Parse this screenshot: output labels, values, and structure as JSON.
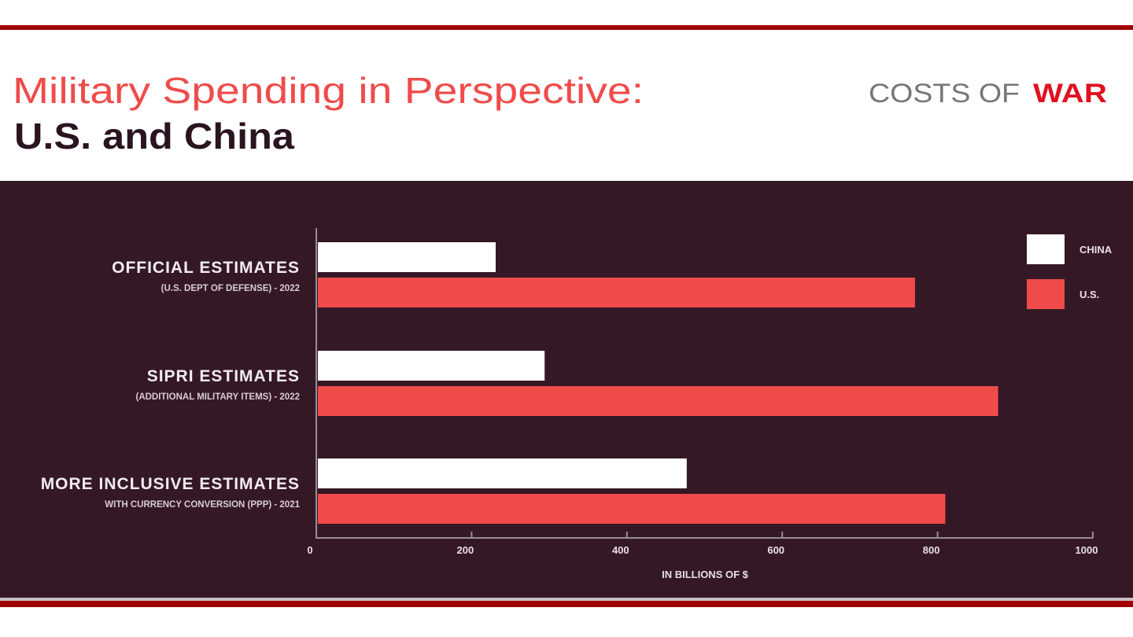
{
  "header": {
    "title": "Military Spending in Perspective:",
    "subtitle": "U.S. and China",
    "logo_part1": "COSTS OF",
    "logo_part2": "WAR"
  },
  "colors": {
    "accent_red": "#f04b4b",
    "brand_dark_red": "#a00000",
    "panel_bg": "#351826",
    "china": "#ffffff",
    "us": "#f04b4b"
  },
  "chart_data": {
    "type": "bar",
    "orientation": "horizontal",
    "title": "Military Spending in Perspective:",
    "subtitle": "U.S. and China",
    "xlabel": "IN BILLIONS OF $",
    "xlim": [
      0,
      1000
    ],
    "xticks": [
      "0",
      "200",
      "400",
      "600",
      "800",
      "1000"
    ],
    "grid": false,
    "legend_position": "right",
    "categories": [
      {
        "label": "OFFICIAL ESTIMATES",
        "sublabel": "(U.S. DEPT OF DEFENSE) - 2022"
      },
      {
        "label": "SIPRI ESTIMATES",
        "sublabel": "(ADDITIONAL MILITARY ITEMS) - 2022"
      },
      {
        "label": "MORE INCLUSIVE ESTIMATES",
        "sublabel": "WITH CURRENCY CONVERSION (PPP) - 2021"
      }
    ],
    "series": [
      {
        "name": "CHINA",
        "color": "#ffffff",
        "values": [
          231,
          294,
          477
        ]
      },
      {
        "name": "U.S.",
        "color": "#f04b4b",
        "values": [
          771,
          878,
          810
        ]
      }
    ]
  }
}
